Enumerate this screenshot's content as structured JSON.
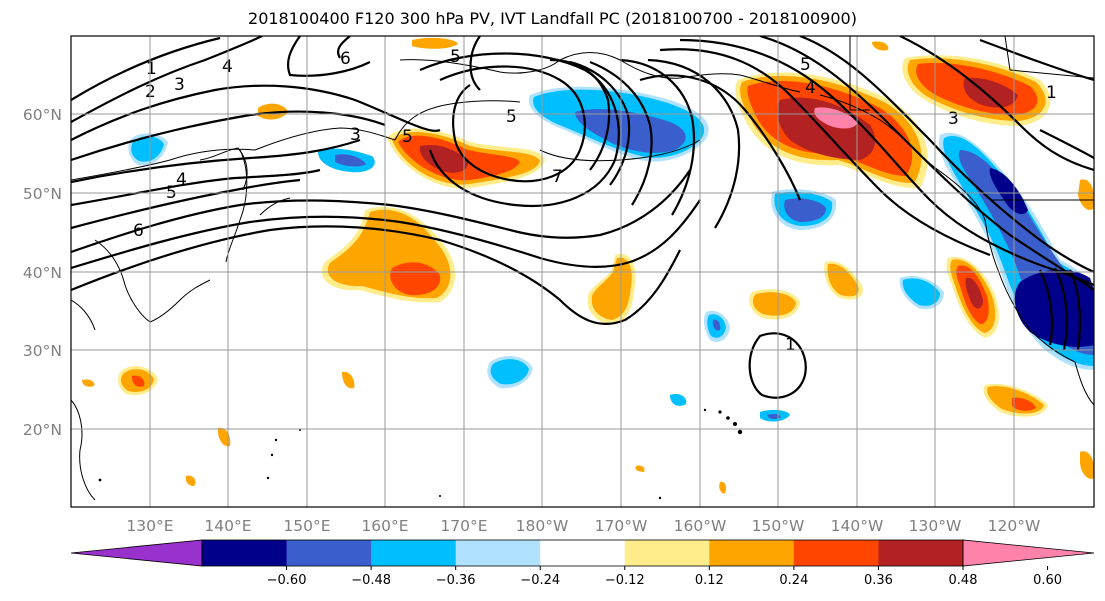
{
  "title": "2018100400 F120 300 hPa PV, IVT Landfall PC (2018100700 - 2018100900)",
  "lat_labels": [
    "60°N",
    "50°N",
    "40°N",
    "30°N",
    "20°N"
  ],
  "lon_labels": [
    "130°E",
    "140°E",
    "150°E",
    "160°E",
    "170°E",
    "180°W",
    "170°W",
    "160°W",
    "150°W",
    "140°W",
    "130°W",
    "120°W"
  ],
  "contour_labels": [
    "1",
    "2",
    "3",
    "4",
    "3",
    "4",
    "5",
    "6",
    "5",
    "6",
    "5",
    "5",
    "7",
    "5",
    "4",
    "3",
    "1",
    "1"
  ],
  "colorbar": {
    "tick_labels": [
      "−0.60",
      "−0.48",
      "−0.36",
      "−0.24",
      "−0.12",
      "0.12",
      "0.24",
      "0.36",
      "0.48",
      "0.60"
    ],
    "colors": [
      "#9932CC",
      "#00008B",
      "#3A5FCD",
      "#00BFFF",
      "#B0E2FF",
      "#FFFFFF",
      "#FFEC8B",
      "#FFA500",
      "#FF4500",
      "#B22222",
      "#FF82AB"
    ]
  }
}
